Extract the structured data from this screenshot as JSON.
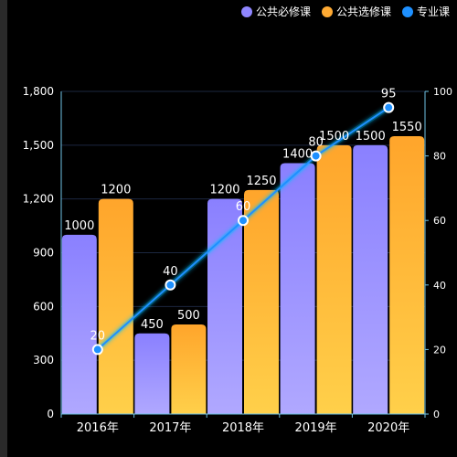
{
  "legend": {
    "items": [
      {
        "label": "公共必修课",
        "color": "#8f86ff"
      },
      {
        "label": "公共选修课",
        "color": "#ffaa33"
      },
      {
        "label": "专业课",
        "color": "#1e90ff"
      }
    ]
  },
  "chart_data": {
    "type": "bar",
    "categories": [
      "2016年",
      "2017年",
      "2018年",
      "2019年",
      "2020年"
    ],
    "series": [
      {
        "name": "公共必修课",
        "type": "bar",
        "axis": "left",
        "values": [
          1000,
          450,
          1200,
          1400,
          1500
        ]
      },
      {
        "name": "公共选修课",
        "type": "bar",
        "axis": "left",
        "values": [
          1200,
          500,
          1250,
          1500,
          1550
        ]
      },
      {
        "name": "专业课",
        "type": "line",
        "axis": "right",
        "values": [
          20,
          40,
          60,
          80,
          95
        ]
      }
    ],
    "y_left": {
      "ylim": [
        0,
        1800
      ],
      "ticks": [
        "0",
        "300",
        "600",
        "900",
        "1,200",
        "1,500",
        "1,800"
      ]
    },
    "y_right": {
      "ylim": [
        0,
        100
      ],
      "ticks": [
        "0",
        "20",
        "40",
        "60",
        "80",
        "100"
      ]
    },
    "grid": true,
    "legend_position": "top-right",
    "colors": {
      "bar1_top": "#8a80ff",
      "bar1_bottom": "#b0a8ff",
      "bar2_top": "#ffa52b",
      "bar2_bottom": "#ffd04a",
      "line": "#1e90ff",
      "axis": "#6fc3e6"
    }
  }
}
